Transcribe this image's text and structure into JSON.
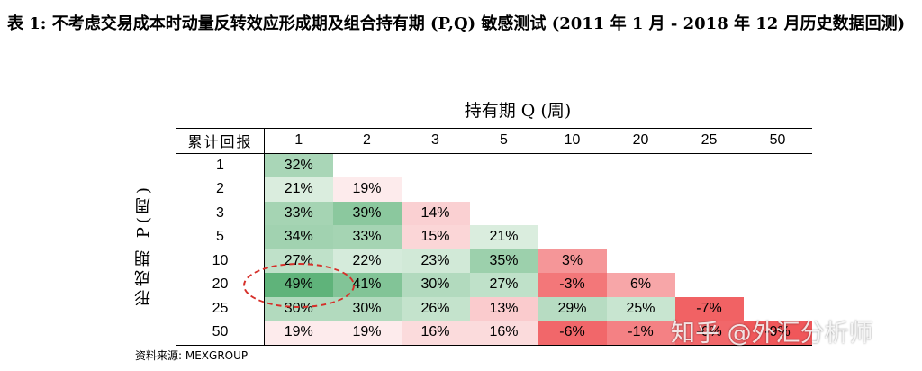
{
  "document": {
    "title": "表 1: 不考虑交易成本时动量反转效应形成期及组合持有期 (P,Q) 敏感测试 (2011 年 1 月 - 2018 年 12 月历史数据回测)",
    "col_axis_title": "持有期 Q (周)",
    "row_axis_title": "形成期 P(周)",
    "corner_label": "累计回报",
    "source": "资料来源: MEXGROUP",
    "watermark": "知乎 @外汇分析师"
  },
  "table": {
    "holding_periods": [
      "1",
      "2",
      "3",
      "5",
      "10",
      "20",
      "25",
      "50"
    ],
    "rows": [
      {
        "p": "1",
        "cells": [
          "32%",
          null,
          null,
          null,
          null,
          null,
          null,
          null
        ]
      },
      {
        "p": "2",
        "cells": [
          "21%",
          "19%",
          null,
          null,
          null,
          null,
          null,
          null
        ]
      },
      {
        "p": "3",
        "cells": [
          "33%",
          "39%",
          "14%",
          null,
          null,
          null,
          null,
          null
        ]
      },
      {
        "p": "5",
        "cells": [
          "34%",
          "33%",
          "15%",
          "21%",
          null,
          null,
          null,
          null
        ]
      },
      {
        "p": "10",
        "cells": [
          "27%",
          "22%",
          "23%",
          "35%",
          "3%",
          null,
          null,
          null
        ]
      },
      {
        "p": "20",
        "cells": [
          "49%",
          "41%",
          "30%",
          "27%",
          "-3%",
          "6%",
          null,
          null
        ]
      },
      {
        "p": "25",
        "cells": [
          "30%",
          "30%",
          "26%",
          "13%",
          "29%",
          "25%",
          "-7%",
          null
        ]
      },
      {
        "p": "50",
        "cells": [
          "19%",
          "19%",
          "16%",
          "16%",
          "-6%",
          "-1%",
          "-6%",
          "-9%"
        ]
      }
    ],
    "highlighted_cell": {
      "p": "20",
      "q": "1"
    }
  },
  "colors": {
    "positive_max": "#5fb37a",
    "neutral": "#ffffff",
    "negative_max": "#f0575a",
    "highlight_oval": "#d6302a"
  }
}
